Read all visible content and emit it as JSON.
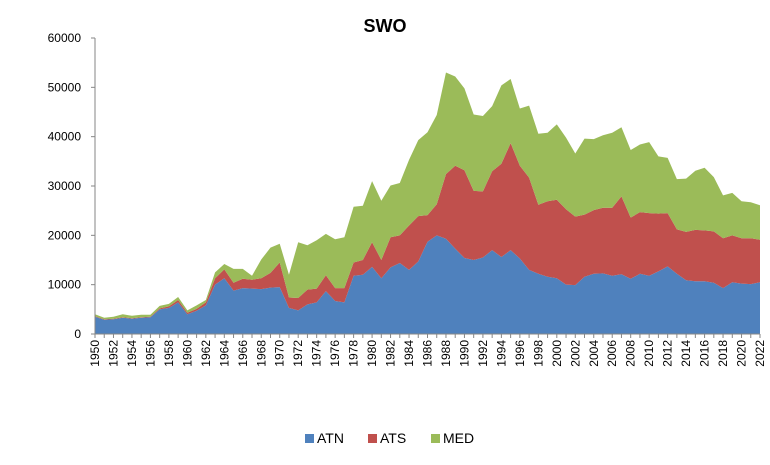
{
  "chart_data": {
    "type": "area",
    "stacked": true,
    "title": "SWO",
    "xlabel": "",
    "ylabel": "",
    "x": [
      1950,
      1951,
      1952,
      1953,
      1954,
      1955,
      1956,
      1957,
      1958,
      1959,
      1960,
      1961,
      1962,
      1963,
      1964,
      1965,
      1966,
      1967,
      1968,
      1969,
      1970,
      1971,
      1972,
      1973,
      1974,
      1975,
      1976,
      1977,
      1978,
      1979,
      1980,
      1981,
      1982,
      1983,
      1984,
      1985,
      1986,
      1987,
      1988,
      1989,
      1990,
      1991,
      1992,
      1993,
      1994,
      1995,
      1996,
      1997,
      1998,
      1999,
      2000,
      2001,
      2002,
      2003,
      2004,
      2005,
      2006,
      2007,
      2008,
      2009,
      2010,
      2011,
      2012,
      2013,
      2014,
      2015,
      2016,
      2017,
      2018,
      2019,
      2020,
      2021,
      2022
    ],
    "xticks": [
      "1950",
      "1952",
      "1954",
      "1956",
      "1958",
      "1960",
      "1962",
      "1964",
      "1966",
      "1968",
      "1970",
      "1972",
      "1974",
      "1976",
      "1978",
      "1980",
      "1982",
      "1984",
      "1986",
      "1988",
      "1990",
      "1992",
      "1994",
      "1996",
      "1998",
      "2000",
      "2002",
      "2004",
      "2006",
      "2008",
      "2010",
      "2012",
      "2014",
      "2016",
      "2018",
      "2020",
      "2022"
    ],
    "ylim": [
      0,
      60000
    ],
    "yticks": [
      "0",
      "10000",
      "20000",
      "30000",
      "40000",
      "50000",
      "60000"
    ],
    "legend_position": "bottom",
    "series": [
      {
        "name": "ATN",
        "color": "#4f81bd",
        "values": [
          3500,
          2900,
          3000,
          3300,
          3100,
          3300,
          3400,
          5000,
          5300,
          6400,
          4000,
          4700,
          5800,
          10000,
          11300,
          8800,
          9300,
          9200,
          9100,
          9400,
          9500,
          5300,
          4800,
          6000,
          6400,
          8700,
          6700,
          6400,
          11800,
          12000,
          13600,
          11300,
          13500,
          14400,
          13000,
          14700,
          18700,
          20000,
          19300,
          17300,
          15400,
          15000,
          15500,
          17000,
          15600,
          17000,
          15300,
          13000,
          12200,
          11600,
          11300,
          10000,
          9900,
          11600,
          12200,
          12300,
          11800,
          12100,
          11200,
          12200,
          11800,
          12700,
          13700,
          12200,
          10900,
          10700,
          10700,
          10400,
          9300,
          10500,
          10200,
          10100,
          10500
        ]
      },
      {
        "name": "ATS",
        "color": "#c0504d",
        "values": [
          100,
          100,
          100,
          100,
          100,
          100,
          100,
          200,
          300,
          500,
          300,
          400,
          600,
          1300,
          1800,
          1600,
          1900,
          1800,
          2200,
          3000,
          5000,
          2100,
          2500,
          3000,
          2800,
          3200,
          2600,
          2900,
          2700,
          3000,
          5000,
          3700,
          6100,
          5600,
          9000,
          9200,
          5400,
          6300,
          13100,
          16800,
          17800,
          14000,
          13400,
          16000,
          18900,
          21700,
          18800,
          18700,
          14000,
          15300,
          15900,
          15300,
          13900,
          12600,
          12900,
          13300,
          13800,
          15800,
          12400,
          12500,
          12700,
          11700,
          10800,
          9000,
          9800,
          10400,
          10300,
          10400,
          10100,
          9500,
          9200,
          9300,
          8600
        ]
      },
      {
        "name": "MED",
        "color": "#9bbb59",
        "values": [
          400,
          300,
          400,
          600,
          500,
          500,
          400,
          500,
          500,
          600,
          500,
          700,
          500,
          1200,
          1100,
          2800,
          2000,
          800,
          3800,
          5100,
          3800,
          4600,
          11300,
          9000,
          9800,
          8400,
          9900,
          10300,
          11300,
          11000,
          12400,
          12000,
          10500,
          10600,
          13300,
          15400,
          16800,
          18100,
          20600,
          18100,
          16600,
          15500,
          15300,
          13200,
          15900,
          13000,
          11600,
          14600,
          14400,
          13900,
          15300,
          14500,
          12800,
          15400,
          14400,
          14700,
          15200,
          14000,
          13700,
          13700,
          14400,
          11600,
          11200,
          10200,
          10800,
          12000,
          12700,
          11000,
          8700,
          8600,
          7500,
          7300,
          7000
        ]
      }
    ]
  }
}
